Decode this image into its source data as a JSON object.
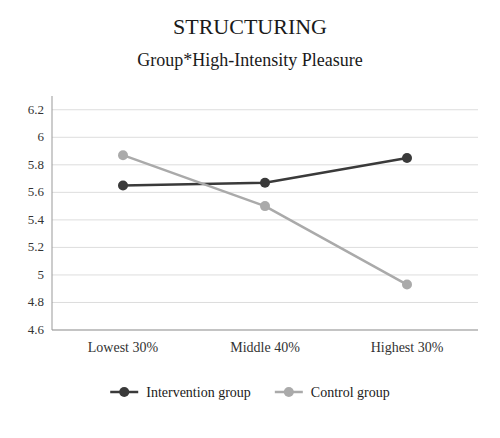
{
  "chart_data": {
    "type": "line",
    "title": "STRUCTURING",
    "subtitle": "Group*High-Intensity Pleasure",
    "categories": [
      "Lowest 30%",
      "Middle 40%",
      "Highest 30%"
    ],
    "series": [
      {
        "name": "Intervention group",
        "color": "#3a3a3a",
        "marker": "circle",
        "values": [
          5.65,
          5.67,
          5.85
        ]
      },
      {
        "name": "Control group",
        "color": "#aaaaaa",
        "marker": "circle",
        "values": [
          5.87,
          5.5,
          4.93
        ]
      }
    ],
    "ylim": [
      4.6,
      6.3
    ],
    "yticks": [
      4.6,
      4.8,
      5.0,
      5.2,
      5.4,
      5.6,
      5.8,
      6.0,
      6.2
    ],
    "grid": true,
    "legend": "bottom"
  }
}
